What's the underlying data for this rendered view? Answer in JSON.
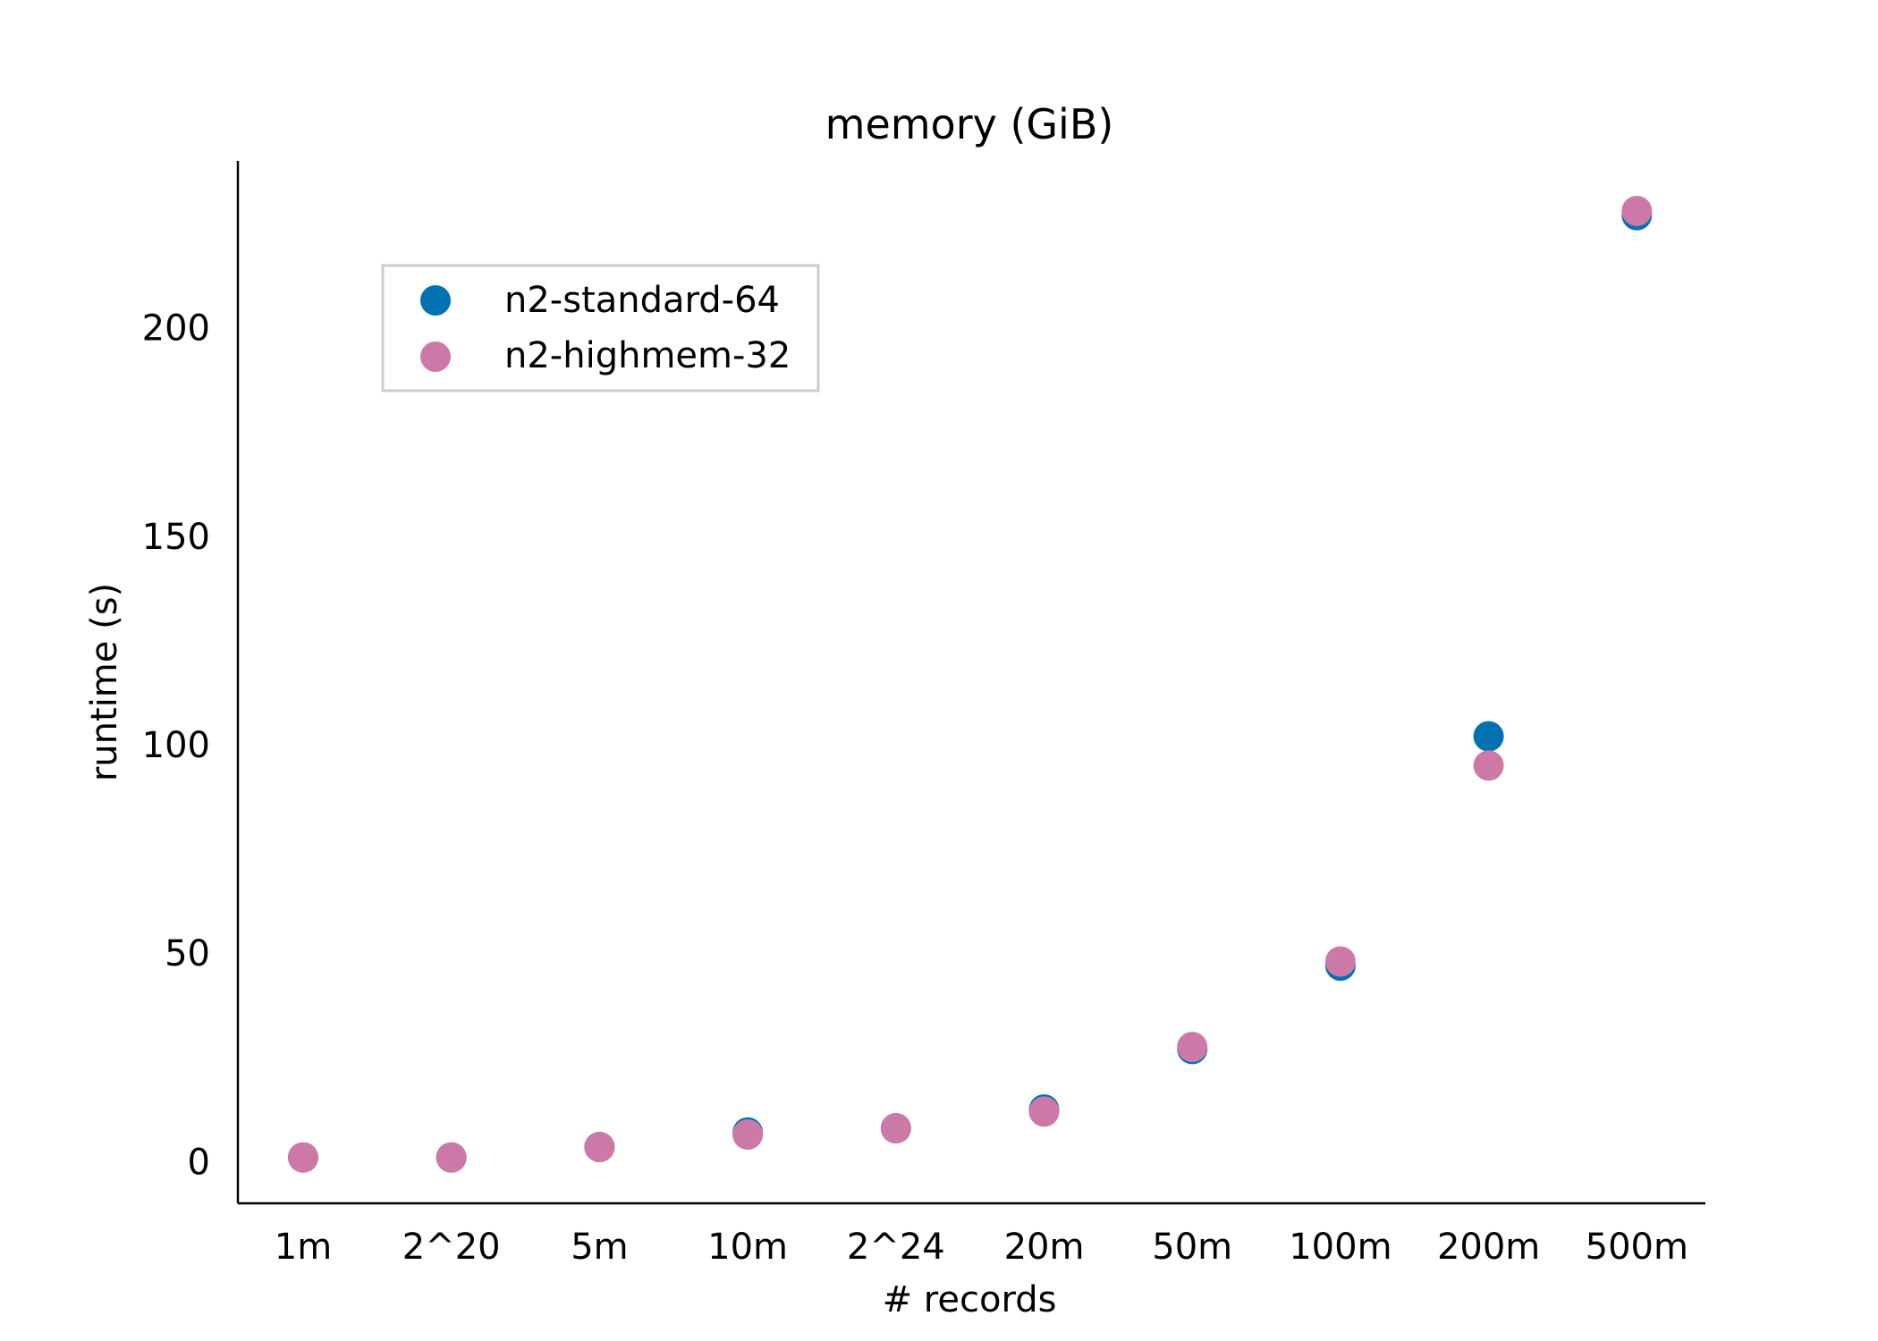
{
  "chart_data": {
    "type": "scatter",
    "title": "memory (GiB)",
    "xlabel": "# records",
    "ylabel": "runtime (s)",
    "categories": [
      "1m",
      "2^20",
      "5m",
      "10m",
      "2^24",
      "20m",
      "50m",
      "100m",
      "200m",
      "500m"
    ],
    "yticks": [
      0,
      50,
      100,
      150,
      200
    ],
    "ylim": [
      -10,
      240
    ],
    "grid": false,
    "legend_position": "upper-left",
    "series": [
      {
        "name": "n2-standard-64",
        "color": "#0072b2",
        "values": [
          1,
          1,
          3.5,
          7,
          8,
          12.5,
          27,
          47,
          102,
          227
        ]
      },
      {
        "name": "n2-highmem-32",
        "color": "#cc79a7",
        "values": [
          1,
          1,
          3.5,
          6.5,
          8,
          12,
          27.5,
          48,
          95,
          228
        ]
      }
    ]
  }
}
